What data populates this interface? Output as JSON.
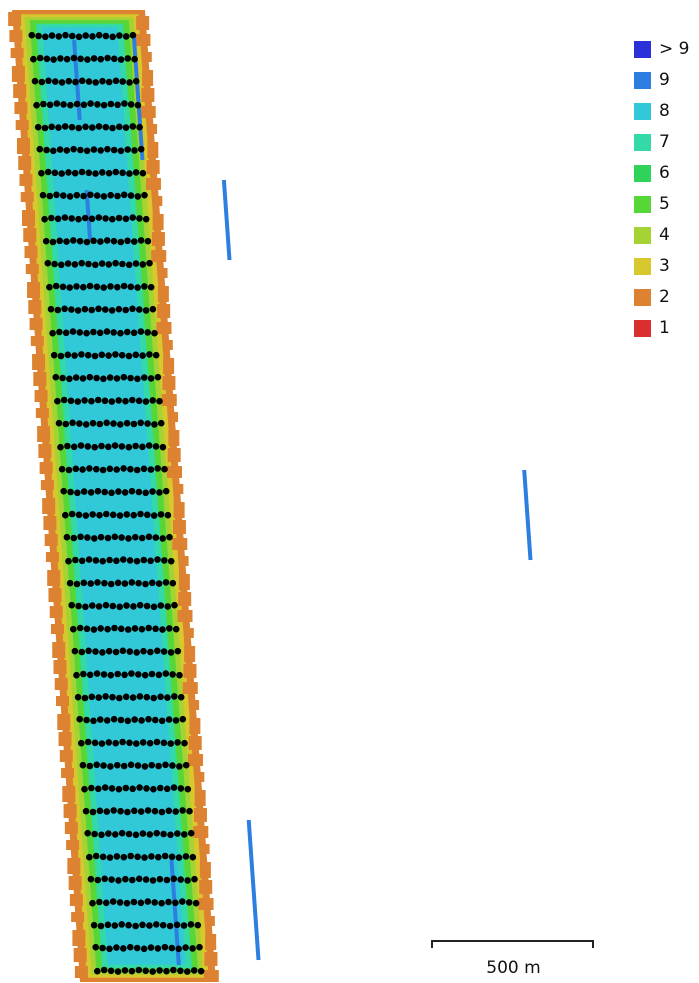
{
  "legend": {
    "items": [
      {
        "label": "> 9",
        "color": "#2b31d8"
      },
      {
        "label": "9",
        "color": "#2c7fe0"
      },
      {
        "label": "8",
        "color": "#31c8d8"
      },
      {
        "label": "7",
        "color": "#33d9a6"
      },
      {
        "label": "6",
        "color": "#2fd35a"
      },
      {
        "label": "5",
        "color": "#57d638"
      },
      {
        "label": "4",
        "color": "#a6d334"
      },
      {
        "label": "3",
        "color": "#d7c82e"
      },
      {
        "label": "2",
        "color": "#dd8230"
      },
      {
        "label": "1",
        "color": "#da2f2f"
      }
    ]
  },
  "scale_bar": {
    "label": "500 m"
  },
  "colors": {
    "camera_point": "#000000",
    "overlap_high": "#2c7fe0",
    "overlap_core": "#31c8d8",
    "overlap_mid": "#33d9a6",
    "overlap_edge1": "#57d638",
    "overlap_edge2": "#a6d334",
    "overlap_edge3": "#d7c82e",
    "overlap_edge4": "#dd8230"
  }
}
